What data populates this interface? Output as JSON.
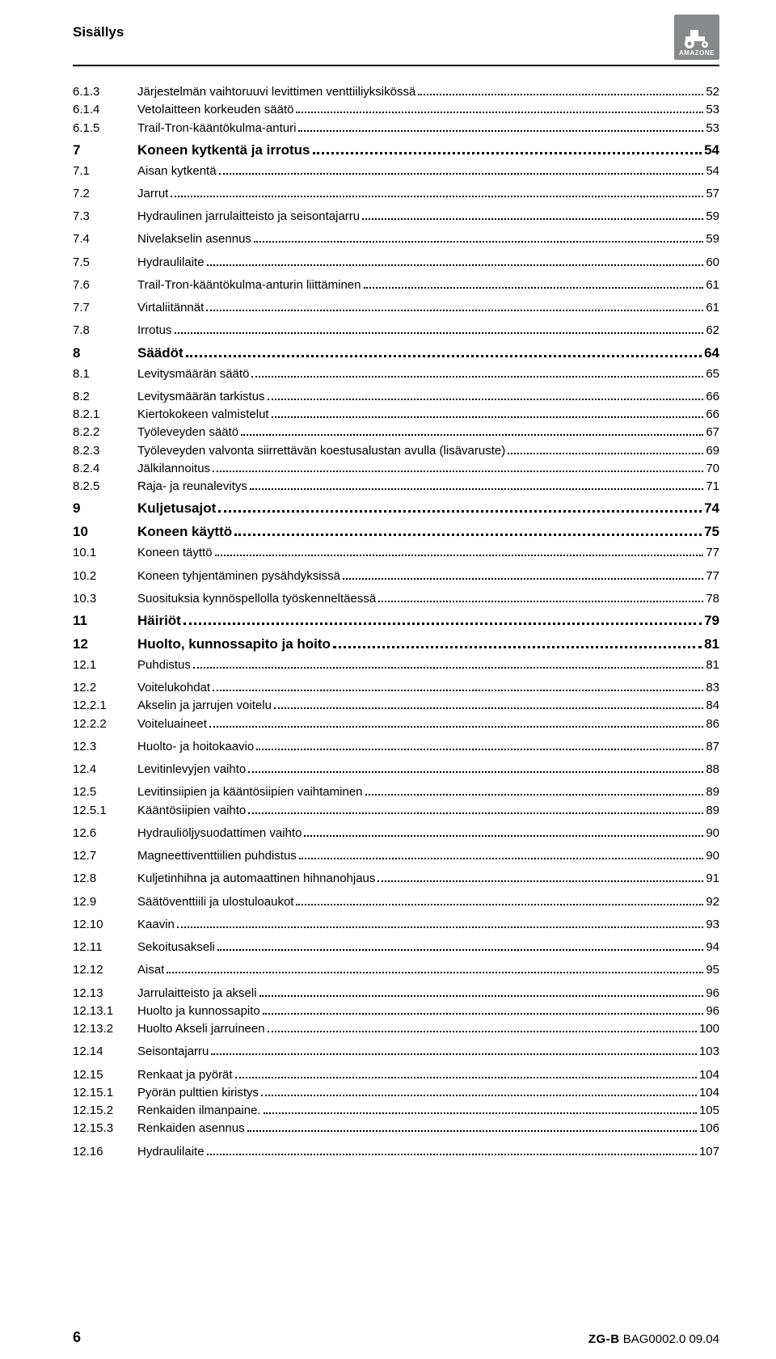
{
  "header": {
    "title": "Sisällys"
  },
  "logo": {
    "brand": "AMAZONE",
    "bg": "#88898c",
    "fg": "#ffffff"
  },
  "footer": {
    "page": "6",
    "brand": "ZG-B",
    "code": "BAG0002.0 09.04"
  },
  "toc": [
    {
      "num": "6.1.3",
      "label": "Järjestelmän vaihtoruuvi levittimen venttiiliyksikössä",
      "pg": "52",
      "bold": false,
      "spaced": false
    },
    {
      "num": "6.1.4",
      "label": "Vetolaitteen korkeuden säätö",
      "pg": "53",
      "bold": false,
      "spaced": false
    },
    {
      "num": "6.1.5",
      "label": "Trail-Tron-kääntökulma-anturi",
      "pg": "53",
      "bold": false,
      "spaced": false
    },
    {
      "num": "7",
      "label": "Koneen kytkentä ja irrotus",
      "pg": "54",
      "bold": true,
      "spaced": false
    },
    {
      "num": "7.1",
      "label": "Aisan kytkentä",
      "pg": "54",
      "bold": false,
      "spaced": false
    },
    {
      "num": "7.2",
      "label": "Jarrut",
      "pg": "57",
      "bold": false,
      "spaced": true
    },
    {
      "num": "7.3",
      "label": "Hydraulinen jarrulaitteisto ja seisontajarru",
      "pg": "59",
      "bold": false,
      "spaced": true
    },
    {
      "num": "7.4",
      "label": "Nivelakselin asennus",
      "pg": "59",
      "bold": false,
      "spaced": true
    },
    {
      "num": "7.5",
      "label": "Hydraulilaite",
      "pg": "60",
      "bold": false,
      "spaced": true
    },
    {
      "num": "7.6",
      "label": "Trail-Tron-kääntökulma-anturin liittäminen",
      "pg": "61",
      "bold": false,
      "spaced": true
    },
    {
      "num": "7.7",
      "label": "Virtaliitännät",
      "pg": "61",
      "bold": false,
      "spaced": true
    },
    {
      "num": "7.8",
      "label": "Irrotus",
      "pg": "62",
      "bold": false,
      "spaced": true
    },
    {
      "num": "8",
      "label": "Säädöt",
      "pg": "64",
      "bold": true,
      "spaced": false
    },
    {
      "num": "8.1",
      "label": "Levitysmäärän säätö",
      "pg": "65",
      "bold": false,
      "spaced": false
    },
    {
      "num": "8.2",
      "label": "Levitysmäärän tarkistus",
      "pg": "66",
      "bold": false,
      "spaced": true
    },
    {
      "num": "8.2.1",
      "label": "Kiertokokeen valmistelut",
      "pg": "66",
      "bold": false,
      "spaced": false
    },
    {
      "num": "8.2.2",
      "label": "Työleveyden säätö",
      "pg": "67",
      "bold": false,
      "spaced": false
    },
    {
      "num": "8.2.3",
      "label": "Työleveyden valvonta siirrettävän koestusalustan avulla (lisävaruste)",
      "pg": "69",
      "bold": false,
      "spaced": false
    },
    {
      "num": "8.2.4",
      "label": "Jälkilannoitus",
      "pg": "70",
      "bold": false,
      "spaced": false
    },
    {
      "num": "8.2.5",
      "label": "Raja- ja reunalevitys",
      "pg": "71",
      "bold": false,
      "spaced": false
    },
    {
      "num": "9",
      "label": "Kuljetusajot",
      "pg": "74",
      "bold": true,
      "spaced": false
    },
    {
      "num": "10",
      "label": "Koneen käyttö",
      "pg": "75",
      "bold": true,
      "spaced": false
    },
    {
      "num": "10.1",
      "label": "Koneen täyttö",
      "pg": "77",
      "bold": false,
      "spaced": false
    },
    {
      "num": "10.2",
      "label": "Koneen tyhjentäminen pysähdyksissä",
      "pg": "77",
      "bold": false,
      "spaced": true
    },
    {
      "num": "10.3",
      "label": "Suosituksia kynnöspellolla työskenneltäessä",
      "pg": "78",
      "bold": false,
      "spaced": true
    },
    {
      "num": "11",
      "label": "Häiriöt",
      "pg": "79",
      "bold": true,
      "spaced": false
    },
    {
      "num": "12",
      "label": "Huolto, kunnossapito ja hoito",
      "pg": "81",
      "bold": true,
      "spaced": false
    },
    {
      "num": "12.1",
      "label": "Puhdistus",
      "pg": "81",
      "bold": false,
      "spaced": false
    },
    {
      "num": "12.2",
      "label": "Voitelukohdat",
      "pg": "83",
      "bold": false,
      "spaced": true
    },
    {
      "num": "12.2.1",
      "label": "Akselin ja jarrujen voitelu",
      "pg": "84",
      "bold": false,
      "spaced": false
    },
    {
      "num": "12.2.2",
      "label": "Voiteluaineet",
      "pg": "86",
      "bold": false,
      "spaced": false
    },
    {
      "num": "12.3",
      "label": "Huolto- ja hoitokaavio",
      "pg": "87",
      "bold": false,
      "spaced": true
    },
    {
      "num": "12.4",
      "label": "Levitinlevyjen vaihto",
      "pg": "88",
      "bold": false,
      "spaced": true
    },
    {
      "num": "12.5",
      "label": "Levitinsiipien ja kääntösiipien vaihtaminen",
      "pg": "89",
      "bold": false,
      "spaced": true
    },
    {
      "num": "12.5.1",
      "label": "Kääntösiipien vaihto",
      "pg": "89",
      "bold": false,
      "spaced": false
    },
    {
      "num": "12.6",
      "label": "Hydrauliöljysuodattimen vaihto",
      "pg": "90",
      "bold": false,
      "spaced": true
    },
    {
      "num": "12.7",
      "label": "Magneettiventtiilien puhdistus",
      "pg": "90",
      "bold": false,
      "spaced": true
    },
    {
      "num": "12.8",
      "label": "Kuljetinhihna ja automaattinen hihnanohjaus",
      "pg": "91",
      "bold": false,
      "spaced": true
    },
    {
      "num": "12.9",
      "label": "Säätöventtiili ja ulostuloaukot",
      "pg": "92",
      "bold": false,
      "spaced": true
    },
    {
      "num": "12.10",
      "label": "Kaavin",
      "pg": "93",
      "bold": false,
      "spaced": true
    },
    {
      "num": "12.11",
      "label": "Sekoitusakseli",
      "pg": "94",
      "bold": false,
      "spaced": true
    },
    {
      "num": "12.12",
      "label": "Aisat",
      "pg": "95",
      "bold": false,
      "spaced": true
    },
    {
      "num": "12.13",
      "label": "Jarrulaitteisto ja akseli",
      "pg": "96",
      "bold": false,
      "spaced": true
    },
    {
      "num": "12.13.1",
      "label": "Huolto ja kunnossapito",
      "pg": "96",
      "bold": false,
      "spaced": false
    },
    {
      "num": "12.13.2",
      "label": "Huolto Akseli jarruineen",
      "pg": "100",
      "bold": false,
      "spaced": false
    },
    {
      "num": "12.14",
      "label": "Seisontajarru",
      "pg": "103",
      "bold": false,
      "spaced": true
    },
    {
      "num": "12.15",
      "label": "Renkaat ja pyörät",
      "pg": "104",
      "bold": false,
      "spaced": true
    },
    {
      "num": "12.15.1",
      "label": "Pyörän pulttien kiristys",
      "pg": "104",
      "bold": false,
      "spaced": false
    },
    {
      "num": "12.15.2",
      "label": "Renkaiden ilmanpaine.",
      "pg": "105",
      "bold": false,
      "spaced": false
    },
    {
      "num": "12.15.3",
      "label": "Renkaiden asennus",
      "pg": "106",
      "bold": false,
      "spaced": false
    },
    {
      "num": "12.16",
      "label": "Hydraulilaite",
      "pg": "107",
      "bold": false,
      "spaced": true
    }
  ]
}
